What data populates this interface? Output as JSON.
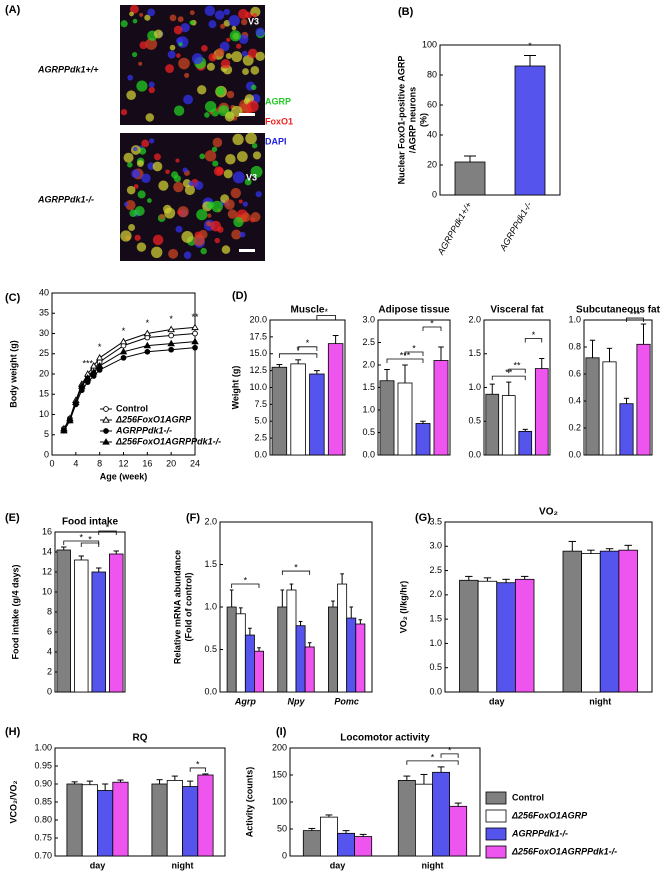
{
  "image_panel": {
    "panel": "(A)",
    "top_label": "AGRPPdk1+/+",
    "bottom_label": "AGRPPdk1-/-",
    "region_top": "V3",
    "region_bottom": "V3",
    "stains": [
      {
        "name": "AGRP",
        "color": "#22cc22"
      },
      {
        "name": "FoxO1",
        "color": "#ee2222"
      },
      {
        "name": "DAPI",
        "color": "#2222dd"
      }
    ]
  },
  "legend": {
    "items": [
      {
        "name": "Control",
        "color": "#808080"
      },
      {
        "name": "Δ256FoxO1AGRP",
        "color": "#ffffff"
      },
      {
        "name": "AGRPPdk1-/-",
        "color": "#5555ee"
      },
      {
        "name": "Δ256FoxO1AGRPPdk1-/-",
        "color": "#ee55ee"
      }
    ]
  },
  "chart_data": [
    {
      "type": "bar",
      "panel": "(B)",
      "ylabel": [
        "Nuclear FoxO1-positive AGRP",
        "/AGRP neurons",
        "(%)"
      ],
      "categories": [
        "AGRPPdk1+/+",
        "AGRPPdk1-/-"
      ],
      "values": [
        22,
        86
      ],
      "errors": [
        4,
        7
      ],
      "colors": [
        "#808080",
        "#5555ee"
      ],
      "ylim": [
        0,
        100
      ],
      "yticks": [
        0,
        20,
        40,
        60,
        80,
        100
      ],
      "significance": [
        {
          "from": 1,
          "to": 1,
          "text": "*"
        }
      ]
    },
    {
      "type": "line",
      "panel": "(C)",
      "xlabel": "Age (week)",
      "ylabel": "Body weight (g)",
      "x": [
        2,
        3,
        4,
        5,
        6,
        7,
        8,
        12,
        16,
        20,
        24
      ],
      "xlim": [
        0,
        24
      ],
      "xticks": [
        0,
        4,
        8,
        12,
        16,
        20,
        24
      ],
      "ylim": [
        0,
        40
      ],
      "yticks": [
        0,
        5,
        10,
        15,
        20,
        25,
        30,
        35,
        40
      ],
      "series": [
        {
          "name": "Control",
          "color": "#000000",
          "marker": "circle-open",
          "values": [
            6.5,
            9,
            13,
            17,
            19.5,
            21,
            23,
            27,
            29,
            29.5,
            30
          ]
        },
        {
          "name": "Δ256FoxO1AGRP",
          "color": "#000000",
          "marker": "triangle-open",
          "values": [
            6.5,
            9,
            13.5,
            17.5,
            20,
            22,
            24,
            28,
            30,
            31,
            31.5
          ]
        },
        {
          "name": "AGRPPdk1-/-",
          "color": "#000000",
          "marker": "circle",
          "values": [
            6,
            8.5,
            12.5,
            16,
            18,
            19.5,
            21,
            24,
            25.5,
            26,
            26.5
          ]
        },
        {
          "name": "Δ256FoxO1AGRPPdk1-/-",
          "color": "#000000",
          "marker": "triangle",
          "values": [
            6,
            8.5,
            13,
            17,
            19,
            20.5,
            22,
            25.5,
            27,
            27.5,
            28
          ]
        }
      ],
      "annotations": [
        {
          "x": 6,
          "text": "***"
        },
        {
          "x": 8,
          "text": "*"
        },
        {
          "x": 12,
          "text": "*"
        },
        {
          "x": 16,
          "text": "*"
        },
        {
          "x": 20,
          "text": "*"
        },
        {
          "x": 24,
          "text": "**"
        }
      ]
    },
    {
      "type": "bar",
      "panel": "(D)",
      "title": "Muscle",
      "ylabel": "Weight (g)",
      "values": [
        13,
        13.5,
        12,
        16.5
      ],
      "errors": [
        0.4,
        0.6,
        0.5,
        1.2
      ],
      "colors": [
        "#808080",
        "#ffffff",
        "#5555ee",
        "#ee55ee"
      ],
      "ylim": [
        0,
        20
      ],
      "yticks": [
        {
          "value": 0,
          "label": "0.0"
        },
        2.5,
        {
          "value": 5,
          "label": "5.0"
        },
        7.5,
        {
          "value": 10,
          "label": "10.0"
        },
        12.5,
        {
          "value": 15,
          "label": "15.0"
        },
        17.5,
        {
          "value": 20,
          "label": "20.0"
        }
      ],
      "significance": [
        {
          "from": 0,
          "to": 2,
          "text": "*"
        },
        {
          "from": 1,
          "to": 2,
          "text": "*"
        },
        {
          "from": 2,
          "to": 3,
          "text": "*"
        }
      ]
    },
    {
      "type": "bar",
      "title": "Adipose tissue",
      "values": [
        1.65,
        1.6,
        0.7,
        2.1
      ],
      "errors": [
        0.25,
        0.4,
        0.05,
        0.3
      ],
      "colors": [
        "#808080",
        "#ffffff",
        "#5555ee",
        "#ee55ee"
      ],
      "ylim": [
        0,
        3
      ],
      "yticks": [
        {
          "value": 0,
          "label": "0.0"
        },
        0.5,
        {
          "value": 1,
          "label": "1.0"
        },
        1.5,
        {
          "value": 2,
          "label": "2.0"
        },
        2.5,
        {
          "value": 3,
          "label": "3.0"
        }
      ],
      "significance": [
        {
          "from": 0,
          "to": 2,
          "text": "***"
        },
        {
          "from": 1,
          "to": 2,
          "text": "*"
        },
        {
          "from": 2,
          "to": 3,
          "text": "*"
        }
      ]
    },
    {
      "type": "bar",
      "title": "Visceral fat",
      "values": [
        0.9,
        0.88,
        0.35,
        1.28
      ],
      "errors": [
        0.15,
        0.2,
        0.03,
        0.15
      ],
      "colors": [
        "#808080",
        "#ffffff",
        "#5555ee",
        "#ee55ee"
      ],
      "ylim": [
        0,
        2
      ],
      "yticks": [
        {
          "value": 0,
          "label": "0.0"
        },
        0.5,
        {
          "value": 1,
          "label": "1.0"
        },
        1.5,
        {
          "value": 2,
          "label": "2.0"
        }
      ],
      "significance": [
        {
          "from": 0,
          "to": 2,
          "text": "**"
        },
        {
          "from": 1,
          "to": 2,
          "text": "**"
        },
        {
          "from": 2,
          "to": 3,
          "text": "*"
        }
      ]
    },
    {
      "type": "bar",
      "title": "Subcutaneous fat",
      "values": [
        0.72,
        0.69,
        0.38,
        0.82
      ],
      "errors": [
        0.13,
        0.1,
        0.04,
        0.15
      ],
      "colors": [
        "#808080",
        "#ffffff",
        "#5555ee",
        "#ee55ee"
      ],
      "ylim": [
        0,
        1
      ],
      "yticks": [
        {
          "value": 0,
          "label": "0.0"
        },
        0.2,
        0.4,
        0.6,
        0.8,
        {
          "value": 1,
          "label": "1.0"
        }
      ],
      "significance": [
        {
          "from": 2,
          "to": 3,
          "text": "***"
        }
      ]
    },
    {
      "type": "bar",
      "panel": "(E)",
      "title": "Food intake",
      "ylabel": "Food intake (g/4 days)",
      "values": [
        14.2,
        13.2,
        12,
        13.8
      ],
      "errors": [
        0.3,
        0.4,
        0.4,
        0.3
      ],
      "colors": [
        "#808080",
        "#ffffff",
        "#5555ee",
        "#ee55ee"
      ],
      "ylim": [
        0,
        16
      ],
      "yticks": [
        0,
        2,
        4,
        6,
        8,
        10,
        12,
        14,
        16
      ],
      "significance": [
        {
          "from": 0,
          "to": 2,
          "text": "*"
        },
        {
          "from": 1,
          "to": 2,
          "text": "*"
        },
        {
          "from": 2,
          "to": 3,
          "text": "*"
        }
      ]
    },
    {
      "type": "bar",
      "panel": "(F)",
      "ylabel": [
        "Relative mRNA abundance",
        "(Fold of control)"
      ],
      "categories": [
        "Agrp",
        "Npy",
        "Pomc"
      ],
      "ylim": [
        0,
        2
      ],
      "yticks": [
        {
          "value": 0,
          "label": "0.0"
        },
        0.5,
        {
          "value": 1,
          "label": "1.0"
        },
        1.5,
        {
          "value": 2,
          "label": "2.0"
        }
      ],
      "series": [
        {
          "color": "#808080",
          "values": [
            1.0,
            1.0,
            1.0
          ],
          "errors": [
            0.2,
            0.2,
            0.07
          ]
        },
        {
          "color": "#ffffff",
          "values": [
            0.92,
            1.2,
            1.27
          ],
          "errors": [
            0.07,
            0.07,
            0.12
          ]
        },
        {
          "color": "#5555ee",
          "values": [
            0.67,
            0.78,
            0.87
          ],
          "errors": [
            0.08,
            0.05,
            0.13
          ]
        },
        {
          "color": "#ee55ee",
          "values": [
            0.48,
            0.53,
            0.8
          ],
          "errors": [
            0.04,
            0.05,
            0.05
          ]
        }
      ],
      "significance": [
        {
          "category": 0,
          "from": 0,
          "to": 3,
          "text": "*"
        },
        {
          "category": 1,
          "from": 0,
          "to": 3,
          "text": "*"
        }
      ]
    },
    {
      "type": "bar",
      "panel": "(G)",
      "title": "VO₂",
      "ylabel": "VO₂ (l/kg/hr)",
      "categories": [
        "day",
        "night"
      ],
      "ylim": [
        0,
        3.5
      ],
      "yticks": [
        {
          "value": 0,
          "label": "0.0"
        },
        0.5,
        {
          "value": 1,
          "label": "1.0"
        },
        1.5,
        {
          "value": 2,
          "label": "2.0"
        },
        2.5,
        {
          "value": 3,
          "label": "3.0"
        },
        3.5
      ],
      "series": [
        {
          "color": "#808080",
          "values": [
            2.3,
            2.9
          ],
          "errors": [
            0.08,
            0.2
          ]
        },
        {
          "color": "#ffffff",
          "values": [
            2.28,
            2.85
          ],
          "errors": [
            0.07,
            0.07
          ]
        },
        {
          "color": "#5555ee",
          "values": [
            2.25,
            2.9
          ],
          "errors": [
            0.07,
            0.05
          ]
        },
        {
          "color": "#ee55ee",
          "values": [
            2.32,
            2.92
          ],
          "errors": [
            0.06,
            0.1
          ]
        }
      ]
    },
    {
      "type": "bar",
      "panel": "(H)",
      "title": "RQ",
      "ylabel": "VCO₂/VO₂",
      "categories": [
        "day",
        "night"
      ],
      "ylim": [
        0.7,
        1
      ],
      "yticks": [
        {
          "value": 0.7,
          "label": "0.70"
        },
        0.75,
        {
          "value": 0.8,
          "label": "0.80"
        },
        0.85,
        {
          "value": 0.9,
          "label": "0.90"
        },
        0.95,
        {
          "value": 1,
          "label": "1.00"
        }
      ],
      "series": [
        {
          "color": "#808080",
          "values": [
            0.9,
            0.9
          ],
          "errors": [
            0.006,
            0.012
          ]
        },
        {
          "color": "#ffffff",
          "values": [
            0.898,
            0.91
          ],
          "errors": [
            0.01,
            0.012
          ]
        },
        {
          "color": "#5555ee",
          "values": [
            0.882,
            0.893
          ],
          "errors": [
            0.018,
            0.015
          ]
        },
        {
          "color": "#ee55ee",
          "values": [
            0.905,
            0.925
          ],
          "errors": [
            0.006,
            0.003
          ]
        }
      ],
      "significance": [
        {
          "category": 1,
          "from": 2,
          "to": 3,
          "text": "*"
        }
      ]
    },
    {
      "type": "bar",
      "panel": "(I)",
      "title": "Locomotor activity",
      "ylabel": "Activity (counts)",
      "categories": [
        "day",
        "night"
      ],
      "ylim": [
        0,
        200
      ],
      "yticks": [
        0,
        50,
        100,
        150,
        200
      ],
      "series": [
        {
          "color": "#808080",
          "values": [
            47,
            140
          ],
          "errors": [
            4,
            8
          ]
        },
        {
          "color": "#ffffff",
          "values": [
            72,
            133
          ],
          "errors": [
            4,
            18
          ]
        },
        {
          "color": "#5555ee",
          "values": [
            42,
            155
          ],
          "errors": [
            5,
            10
          ]
        },
        {
          "color": "#ee55ee",
          "values": [
            36,
            92
          ],
          "errors": [
            4,
            6
          ]
        }
      ],
      "significance": [
        {
          "category": 1,
          "from": 0,
          "to": 3,
          "text": "*"
        },
        {
          "category": 1,
          "from": 2,
          "to": 3,
          "text": "*"
        }
      ]
    }
  ]
}
